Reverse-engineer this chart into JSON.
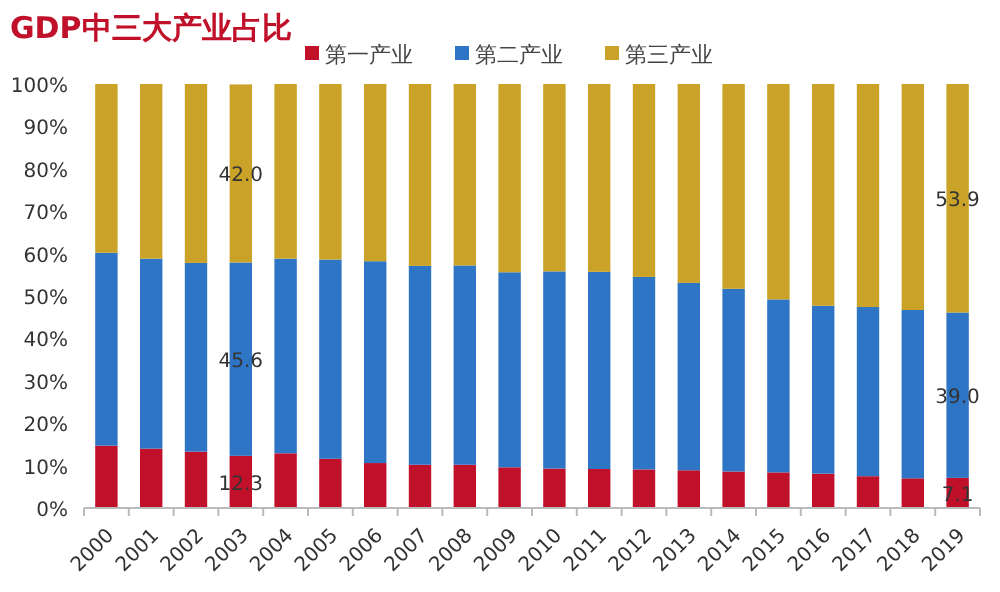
{
  "chart_data": {
    "type": "bar",
    "title": "GDP中三大产业占比",
    "stacked": true,
    "legend": "top",
    "grid": false,
    "categories": [
      "2000",
      "2001",
      "2002",
      "2003",
      "2004",
      "2005",
      "2006",
      "2007",
      "2008",
      "2009",
      "2010",
      "2011",
      "2012",
      "2013",
      "2014",
      "2015",
      "2016",
      "2017",
      "2018",
      "2019"
    ],
    "series": [
      {
        "name": "第一产业",
        "color": "#c0102a",
        "values": [
          14.7,
          14.0,
          13.3,
          12.3,
          12.9,
          11.6,
          10.6,
          10.2,
          10.2,
          9.6,
          9.3,
          9.2,
          9.1,
          8.9,
          8.6,
          8.4,
          8.1,
          7.5,
          7.0,
          7.1
        ],
        "value_labels": [
          null,
          null,
          null,
          "12.3",
          null,
          null,
          null,
          null,
          null,
          null,
          null,
          null,
          null,
          null,
          null,
          null,
          null,
          null,
          null,
          "7.1"
        ]
      },
      {
        "name": "第二产业",
        "color": "#2e75c6",
        "values": [
          45.5,
          44.8,
          44.5,
          45.6,
          45.9,
          47.0,
          47.6,
          46.9,
          47.0,
          46.0,
          46.5,
          46.5,
          45.4,
          44.2,
          43.1,
          40.8,
          39.6,
          39.9,
          39.7,
          39.0
        ],
        "value_labels": [
          null,
          null,
          null,
          "45.6",
          null,
          null,
          null,
          null,
          null,
          null,
          null,
          null,
          null,
          null,
          null,
          null,
          null,
          null,
          null,
          "39.0"
        ]
      },
      {
        "name": "第三产业",
        "color": "#c9a227",
        "values": [
          39.8,
          41.2,
          42.2,
          42.0,
          41.2,
          41.4,
          41.8,
          42.9,
          42.8,
          44.4,
          44.2,
          44.3,
          45.5,
          46.9,
          48.3,
          50.8,
          52.3,
          52.6,
          53.3,
          53.9
        ],
        "value_labels": [
          null,
          null,
          null,
          "42.0",
          null,
          null,
          null,
          null,
          null,
          null,
          null,
          null,
          null,
          null,
          null,
          null,
          null,
          null,
          null,
          "53.9"
        ]
      }
    ],
    "ylim": [
      0,
      100
    ],
    "yticks": [
      {
        "value": 0,
        "label": "0%"
      },
      {
        "value": 10,
        "label": "10%"
      },
      {
        "value": 20,
        "label": "20%"
      },
      {
        "value": 30,
        "label": "30%"
      },
      {
        "value": 40,
        "label": "40%"
      },
      {
        "value": 50,
        "label": "50%"
      },
      {
        "value": 60,
        "label": "60%"
      },
      {
        "value": 70,
        "label": "70%"
      },
      {
        "value": 80,
        "label": "80%"
      },
      {
        "value": 90,
        "label": "90%"
      },
      {
        "value": 100,
        "label": "100%"
      }
    ]
  }
}
